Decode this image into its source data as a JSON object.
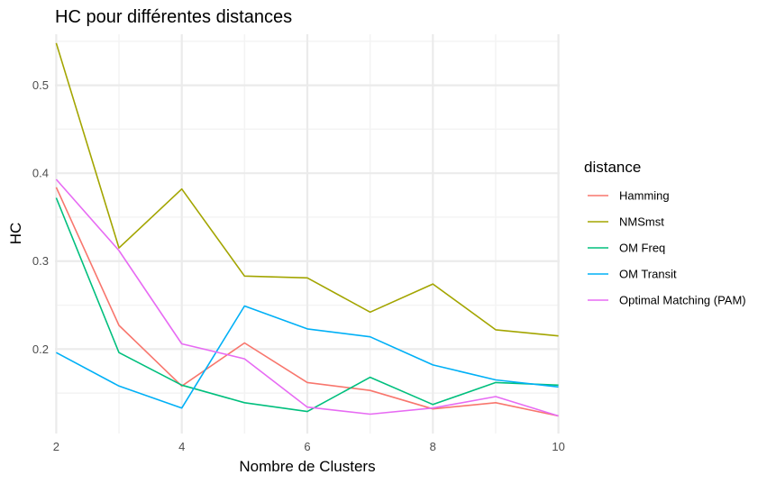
{
  "chart_data": {
    "type": "line",
    "title": "HC pour différentes distances",
    "xlabel": "Nombre de Clusters",
    "ylabel": "HC",
    "x": [
      2,
      3,
      4,
      5,
      6,
      7,
      8,
      9,
      10
    ],
    "xlim": [
      1.98,
      10.02
    ],
    "ylim": [
      0.104,
      0.558
    ],
    "x_ticks": [
      2,
      4,
      6,
      8,
      10
    ],
    "y_ticks": [
      0.2,
      0.3,
      0.4,
      0.5
    ],
    "y_tick_labels": [
      "0.2",
      "0.3",
      "0.4",
      "0.5"
    ],
    "grid": true,
    "legend": {
      "title": "distance",
      "position": "right"
    },
    "series": [
      {
        "name": "Hamming",
        "color": "#F8766D",
        "values": [
          0.384,
          0.227,
          0.158,
          0.207,
          0.162,
          0.153,
          0.132,
          0.139,
          0.124
        ]
      },
      {
        "name": "NMSmst",
        "color": "#A3A500",
        "values": [
          0.548,
          0.315,
          0.382,
          0.283,
          0.281,
          0.242,
          0.274,
          0.222,
          0.215
        ]
      },
      {
        "name": "OM Freq",
        "color": "#00BF7D",
        "values": [
          0.372,
          0.196,
          0.159,
          0.139,
          0.129,
          0.168,
          0.137,
          0.162,
          0.159
        ]
      },
      {
        "name": "OM Transit",
        "color": "#00B0F6",
        "values": [
          0.196,
          0.158,
          0.133,
          0.249,
          0.223,
          0.214,
          0.182,
          0.165,
          0.157
        ]
      },
      {
        "name": "Optimal Matching (PAM)",
        "color": "#E76BF3",
        "values": [
          0.393,
          0.312,
          0.206,
          0.189,
          0.134,
          0.126,
          0.133,
          0.146,
          0.124
        ]
      }
    ]
  }
}
